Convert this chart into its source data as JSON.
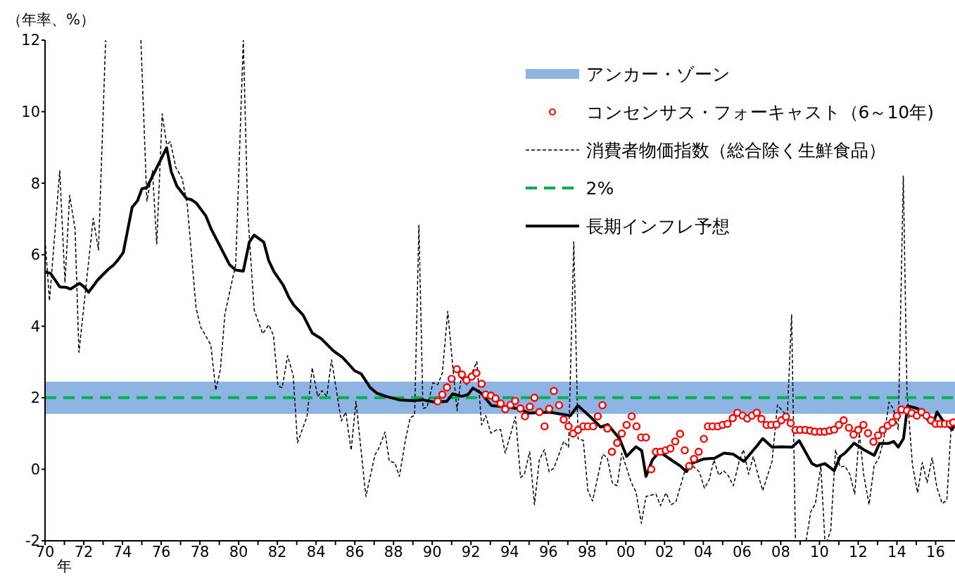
{
  "chart_data": {
    "type": "line",
    "ylabel": "（年率、%）",
    "xlabel": "年",
    "xlim": [
      1970,
      2017
    ],
    "ylim": [
      -2,
      12
    ],
    "yticks": [
      -2,
      0,
      2,
      4,
      6,
      8,
      10,
      12
    ],
    "xticks": [
      {
        "value": 1970,
        "label": "70"
      },
      {
        "value": 1971,
        "label": null
      },
      {
        "value": 1972,
        "label": "72"
      },
      {
        "value": 1973,
        "label": null
      },
      {
        "value": 1974,
        "label": "74"
      },
      {
        "value": 1975,
        "label": null
      },
      {
        "value": 1976,
        "label": "76"
      },
      {
        "value": 1977,
        "label": null
      },
      {
        "value": 1978,
        "label": "78"
      },
      {
        "value": 1979,
        "label": null
      },
      {
        "value": 1980,
        "label": "80"
      },
      {
        "value": 1981,
        "label": null
      },
      {
        "value": 1982,
        "label": "82"
      },
      {
        "value": 1983,
        "label": null
      },
      {
        "value": 1984,
        "label": "84"
      },
      {
        "value": 1985,
        "label": null
      },
      {
        "value": 1986,
        "label": "86"
      },
      {
        "value": 1987,
        "label": null
      },
      {
        "value": 1988,
        "label": "88"
      },
      {
        "value": 1989,
        "label": null
      },
      {
        "value": 1990,
        "label": "90"
      },
      {
        "value": 1991,
        "label": null
      },
      {
        "value": 1992,
        "label": "92"
      },
      {
        "value": 1993,
        "label": null
      },
      {
        "value": 1994,
        "label": "94"
      },
      {
        "value": 1995,
        "label": null
      },
      {
        "value": 1996,
        "label": "96"
      },
      {
        "value": 1997,
        "label": null
      },
      {
        "value": 1998,
        "label": "98"
      },
      {
        "value": 1999,
        "label": null
      },
      {
        "value": 2000,
        "label": "00"
      },
      {
        "value": 2001,
        "label": null
      },
      {
        "value": 2002,
        "label": "02"
      },
      {
        "value": 2003,
        "label": null
      },
      {
        "value": 2004,
        "label": "04"
      },
      {
        "value": 2005,
        "label": null
      },
      {
        "value": 2006,
        "label": "06"
      },
      {
        "value": 2007,
        "label": null
      },
      {
        "value": 2008,
        "label": "08"
      },
      {
        "value": 2009,
        "label": null
      },
      {
        "value": 2010,
        "label": "10"
      },
      {
        "value": 2011,
        "label": null
      },
      {
        "value": 2012,
        "label": "12"
      },
      {
        "value": 2013,
        "label": null
      },
      {
        "value": 2014,
        "label": "14"
      },
      {
        "value": 2015,
        "label": null
      },
      {
        "value": 2016,
        "label": "16"
      }
    ],
    "legend": "top right",
    "bands": [
      {
        "axis": "y",
        "from": 1.55,
        "to": 2.45,
        "label": "アンカー・ゾーン",
        "color": "#8eb4e3"
      }
    ],
    "ref_lines": [
      {
        "axis": "y",
        "value": 2,
        "label": "2%",
        "color": "#00b050",
        "line_style": "dashed"
      }
    ],
    "series": [
      {
        "name": "コンセンサス・フォーキャスト（6～10年)",
        "type": "scatter",
        "marker": "circle",
        "color": "#ff0000",
        "x": [
          1990.28,
          1990.52,
          1990.76,
          1991.0,
          1991.27,
          1991.53,
          1991.77,
          1992.04,
          1992.28,
          1992.55,
          1992.76,
          1993.03,
          1993.27,
          1993.53,
          1993.77,
          1994.04,
          1994.28,
          1994.55,
          1994.79,
          1995.04,
          1995.28,
          1995.53,
          1995.8,
          1996.04,
          1996.28,
          1996.55,
          1996.79,
          1997.04,
          1997.28,
          1997.53,
          1997.8,
          1998.04,
          1998.31,
          1998.55,
          1998.79,
          1999.04,
          1999.28,
          1999.55,
          1999.79,
          2000.04,
          2000.3,
          2000.55,
          2000.79,
          2001.04,
          2001.31,
          2001.55,
          2001.79,
          2002.06,
          2002.3,
          2002.55,
          2002.8,
          2003.04,
          2003.27,
          2003.52,
          2003.76,
          2004.03,
          2004.24,
          2004.48,
          2004.75,
          2005.0,
          2005.25,
          2005.52,
          2005.76,
          2006.03,
          2006.27,
          2006.51,
          2006.76,
          2007.0,
          2007.27,
          2007.51,
          2007.78,
          2008.03,
          2008.27,
          2008.51,
          2008.76,
          2009.0,
          2009.27,
          2009.52,
          2009.76,
          2010.03,
          2010.27,
          2010.52,
          2010.76,
          2011.0,
          2011.25,
          2011.52,
          2011.76,
          2012.0,
          2012.27,
          2012.51,
          2012.79,
          2013.03,
          2013.27,
          2013.52,
          2013.76,
          2014.0,
          2014.24,
          2014.52,
          2014.76,
          2015.03,
          2015.27,
          2015.52,
          2015.76,
          2016.0,
          2016.24,
          2016.48,
          2016.73,
          2016.91
        ],
        "values": [
          1.9,
          2.09,
          2.29,
          2.53,
          2.8,
          2.65,
          2.49,
          2.59,
          2.69,
          2.39,
          2.09,
          2.06,
          1.98,
          1.84,
          1.68,
          1.8,
          1.91,
          1.7,
          1.48,
          1.75,
          2.0,
          1.6,
          1.2,
          1.69,
          2.19,
          1.79,
          1.39,
          1.2,
          1.0,
          1.1,
          1.2,
          1.2,
          1.2,
          1.48,
          1.79,
          1.14,
          0.49,
          0.74,
          1.0,
          1.24,
          1.48,
          1.2,
          0.89,
          0.89,
          0.0,
          0.49,
          0.49,
          0.53,
          0.58,
          0.78,
          0.99,
          0.53,
          0.09,
          0.29,
          0.49,
          0.85,
          1.2,
          1.2,
          1.2,
          1.24,
          1.27,
          1.43,
          1.58,
          1.5,
          1.42,
          1.5,
          1.58,
          1.41,
          1.24,
          1.24,
          1.25,
          1.37,
          1.47,
          1.29,
          1.1,
          1.1,
          1.1,
          1.08,
          1.05,
          1.05,
          1.05,
          1.08,
          1.11,
          1.24,
          1.37,
          1.16,
          0.97,
          1.1,
          1.24,
          1.01,
          0.77,
          0.95,
          1.1,
          1.22,
          1.31,
          1.49,
          1.67,
          1.64,
          1.57,
          1.5,
          1.6,
          1.5,
          1.37,
          1.27,
          1.27,
          1.27,
          1.27,
          1.31
        ]
      },
      {
        "name": "消費者物価指数（総合除く生鮮食品）",
        "type": "line",
        "marker": "none",
        "line_style": "dashed",
        "color": "#000000",
        "x": [
          1970.0,
          1970.23,
          1970.76,
          1971.03,
          1971.27,
          1971.55,
          1971.75,
          1972.49,
          1972.76,
          1973.13,
          1973.5,
          1974.95,
          1975.26,
          1975.55,
          1975.77,
          1976.05,
          1976.28,
          1976.47,
          1976.76,
          1977.08,
          1977.35,
          1977.8,
          1978.03,
          1978.56,
          1978.82,
          1979.06,
          1979.29,
          1979.85,
          1980.24,
          1980.47,
          1980.8,
          1981.24,
          1981.56,
          1981.8,
          1982.03,
          1982.25,
          1982.53,
          1982.82,
          1983.04,
          1983.53,
          1983.8,
          1984.08,
          1984.3,
          1984.55,
          1984.8,
          1985.3,
          1985.53,
          1985.81,
          1986.06,
          1986.57,
          1987.04,
          1987.27,
          1987.56,
          1987.78,
          1988.07,
          1988.3,
          1988.62,
          1988.86,
          1989.09,
          1989.31,
          1989.52,
          1989.73,
          1990.04,
          1990.28,
          1990.52,
          1990.8,
          1991.07,
          1991.28,
          1991.49,
          1991.79,
          1992.3,
          1992.55,
          1992.76,
          1993.03,
          1993.31,
          1993.53,
          1993.77,
          1994.3,
          1994.56,
          1994.76,
          1995.03,
          1995.28,
          1995.53,
          1995.79,
          1996.04,
          1996.28,
          1996.79,
          1997.04,
          1997.31,
          1997.53,
          1997.8,
          1998.04,
          1998.28,
          1998.8,
          1999.04,
          1999.31,
          1999.55,
          1999.79,
          2000.28,
          2000.52,
          2000.8,
          2001.04,
          2001.55,
          2001.79,
          2002.07,
          2002.34,
          2002.58,
          2003.07,
          2003.31,
          2003.79,
          2004.06,
          2004.3,
          2004.55,
          2004.8,
          2005.04,
          2005.28,
          2005.55,
          2005.85,
          2006.07,
          2006.34,
          2006.58,
          2006.82,
          2007.07,
          2007.55,
          2007.83,
          2008.07,
          2008.34,
          2008.56,
          2008.76,
          2009.0,
          2009.31,
          2009.55,
          2009.79,
          2010.07,
          2010.28,
          2010.4,
          2010.58,
          2010.83,
          2011.07,
          2011.31,
          2011.57,
          2011.82,
          2012.06,
          2012.28,
          2012.56,
          2012.82,
          2013.07,
          2013.31,
          2013.59,
          2013.83,
          2014.07,
          2014.33,
          2014.52,
          2014.8,
          2015.07,
          2015.31,
          2015.56,
          2015.82,
          2016.06,
          2016.34,
          2016.58,
          2016.79,
          2017.0
        ],
        "values": [
          6.42,
          4.71,
          8.35,
          5.22,
          7.66,
          6.72,
          3.27,
          7.02,
          6.13,
          12,
          null,
          12,
          7.5,
          8.35,
          6.3,
          9.94,
          9.08,
          9.16,
          8.43,
          8.14,
          7.37,
          4.51,
          3.99,
          3.48,
          2.21,
          2.8,
          4.34,
          5.74,
          12,
          7.19,
          4.46,
          3.79,
          4.04,
          3.74,
          2.33,
          2.28,
          3.18,
          2.61,
          0.74,
          1.47,
          2.84,
          2.03,
          2.2,
          2.04,
          3.06,
          1.35,
          1.6,
          0.53,
          1.9,
          -0.76,
          0.4,
          0.62,
          1.04,
          0.23,
          0.18,
          -0.2,
          0.83,
          1.44,
          1.51,
          6.82,
          1.7,
          1.73,
          2.42,
          2.36,
          2.69,
          4.42,
          2.82,
          1.64,
          2.55,
          2.36,
          3.01,
          1.24,
          1.5,
          1.01,
          1.1,
          1.11,
          0.45,
          1.47,
          -0.23,
          -0.14,
          0.49,
          -0.99,
          0.26,
          0.55,
          -0.07,
          0.03,
          0.78,
          0.62,
          6.36,
          0.85,
          0.81,
          -0.6,
          -0.89,
          0.42,
          0.32,
          -0.4,
          -0.46,
          0.45,
          -0.37,
          -0.63,
          -1.51,
          -0.76,
          -0.69,
          -1.02,
          -0.66,
          -0.99,
          -0.92,
          0.0,
          0.16,
          -0.07,
          -0.53,
          -0.3,
          0.26,
          -0.17,
          -0.04,
          -0.17,
          -0.46,
          0.22,
          0.55,
          -0.14,
          0.36,
          -0.14,
          -0.6,
          0.22,
          1.8,
          1.64,
          1.5,
          4.32,
          -2,
          null,
          -2,
          -1.19,
          -0.96,
          0.09,
          -2,
          -2,
          -1.71,
          0.55,
          0.06,
          0.09,
          -0.14,
          -0.69,
          1.01,
          -0.14,
          -0.99,
          0.09,
          0.32,
          0.81,
          1.88,
          1.67,
          1.11,
          8.2,
          2.16,
          0.13,
          -0.66,
          0.19,
          -0.37,
          0.32,
          -0.5,
          -0.96,
          -0.86,
          1.08,
          1.27
        ]
      },
      {
        "name": "長期インフレ予想",
        "type": "line",
        "marker": "none",
        "line_style": "solid",
        "color": "#000000",
        "x": [
          1970.0,
          1970.28,
          1970.76,
          1971.07,
          1971.31,
          1971.78,
          1972.02,
          1972.25,
          1972.73,
          1973.28,
          1973.52,
          1973.76,
          1974.04,
          1974.5,
          1974.78,
          1975.0,
          1975.26,
          1975.73,
          1976.05,
          1976.28,
          1976.52,
          1976.81,
          1977.31,
          1977.55,
          1977.8,
          1978.3,
          1978.58,
          1979.53,
          1979.85,
          1980.24,
          1980.55,
          1980.8,
          1981.3,
          1981.55,
          1981.82,
          1982.3,
          1982.6,
          1982.85,
          1983.32,
          1983.8,
          1984.27,
          1984.9,
          1985.38,
          1986.0,
          1986.33,
          1986.8,
          1987.13,
          1987.6,
          1988.3,
          1989.0,
          1989.5,
          1990.12,
          1990.75,
          1991.06,
          1991.53,
          1991.85,
          1992.1,
          1992.52,
          1993.06,
          1994.04,
          1994.52,
          1995.0,
          1996.03,
          1997.13,
          1997.52,
          1998.16,
          1998.7,
          1999.07,
          1999.67,
          2000.04,
          2000.52,
          2000.82,
          2001.04,
          2001.37,
          2001.73,
          2002.46,
          2002.82,
          2003.13,
          2003.37,
          2004.04,
          2004.58,
          2005.07,
          2005.55,
          2006.1,
          2006.76,
          2007.07,
          2007.55,
          2008.04,
          2008.58,
          2008.95,
          2009.31,
          2009.61,
          2009.85,
          2010.28,
          2010.76,
          2011.07,
          2011.31,
          2011.79,
          2012.28,
          2012.83,
          2013.1,
          2013.55,
          2013.83,
          2014.07,
          2014.34,
          2014.55,
          2015.07,
          2015.44,
          2015.69,
          2015.87,
          2016.07,
          2016.44,
          2016.86,
          2017.0
        ],
        "values": [
          5.52,
          5.48,
          5.1,
          5.09,
          5.04,
          5.2,
          5.1,
          4.95,
          5.3,
          5.6,
          5.7,
          5.85,
          6.06,
          7.33,
          7.51,
          7.84,
          7.88,
          8.39,
          8.74,
          8.99,
          8.32,
          7.92,
          7.57,
          7.54,
          7.45,
          7.09,
          6.72,
          5.72,
          5.57,
          5.54,
          6.35,
          6.55,
          6.35,
          5.84,
          5.53,
          5.15,
          4.8,
          4.59,
          4.32,
          3.81,
          3.65,
          3.31,
          3.12,
          2.75,
          2.67,
          2.28,
          2.13,
          2.04,
          1.94,
          1.92,
          1.94,
          1.88,
          1.9,
          2.11,
          2.04,
          2.09,
          2.27,
          2.13,
          1.78,
          1.73,
          1.68,
          1.57,
          1.6,
          1.5,
          1.78,
          1.47,
          1.18,
          1.25,
          0.86,
          0.36,
          0.63,
          0.52,
          -0.2,
          0.26,
          0.49,
          0.22,
          0.09,
          -0.07,
          0.16,
          0.29,
          0.31,
          0.45,
          0.42,
          0.22,
          0.65,
          0.86,
          0.62,
          0.63,
          0.62,
          0.8,
          0.45,
          0.16,
          0.09,
          0.16,
          -0.04,
          0.36,
          0.45,
          0.73,
          0.55,
          0.39,
          0.72,
          0.72,
          0.78,
          0.62,
          0.86,
          1.77,
          1.7,
          1.5,
          1.31,
          1.27,
          1.6,
          1.31,
          1.11,
          1.27
        ]
      }
    ]
  }
}
